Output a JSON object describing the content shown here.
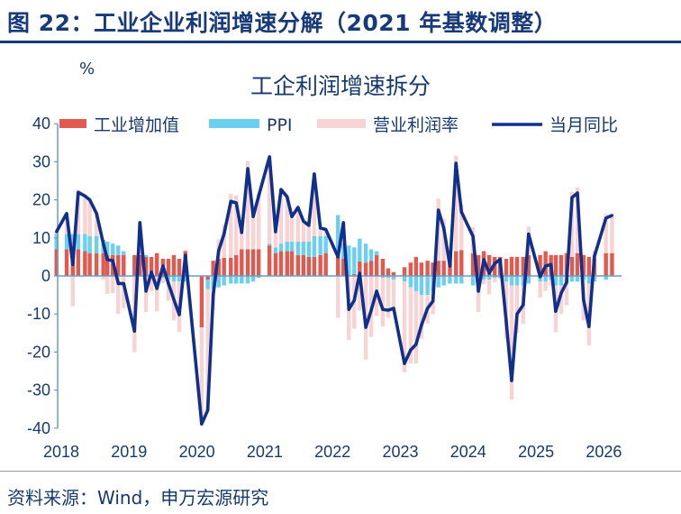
{
  "figure_title": "图 22：工业企业利润增速分解（2021 年基数调整）",
  "source": "资料来源：Wind，申万宏源研究",
  "colors": {
    "iva": "#e05a50",
    "ppi": "#6dcff0",
    "margin": "#f8d3d3",
    "total": "#10308c",
    "axis": "#6a9cc8",
    "text": "#173a6e"
  },
  "chart_data": {
    "type": "bar+line",
    "title": "工企利润增速拆分",
    "ylabel": "%",
    "ylim": [
      -40,
      40
    ],
    "yticks": [
      40,
      30,
      20,
      10,
      0,
      -10,
      -20,
      -30,
      -40
    ],
    "xlim": [
      2017.9,
      2026.2
    ],
    "xticks": [
      "2018",
      "2019",
      "2020",
      "2021",
      "2022",
      "2023",
      "2024",
      "2025",
      "2026"
    ],
    "legend_position": "top",
    "legend": [
      "工业增加值",
      "PPI",
      "营业利润率",
      "当月同比"
    ],
    "x": [
      2017.93,
      2018.08,
      2018.17,
      2018.25,
      2018.35,
      2018.42,
      2018.52,
      2018.62,
      2018.68,
      2018.76,
      2018.84,
      2018.92,
      2019.08,
      2019.16,
      2019.25,
      2019.33,
      2019.41,
      2019.5,
      2019.58,
      2019.66,
      2019.74,
      2019.83,
      2020.07,
      2020.16,
      2020.24,
      2020.32,
      2020.4,
      2020.5,
      2020.58,
      2020.66,
      2020.75,
      2020.83,
      2020.91,
      2021.07,
      2021.16,
      2021.24,
      2021.33,
      2021.4,
      2021.49,
      2021.57,
      2021.65,
      2021.73,
      2021.82,
      2021.9,
      2022.08,
      2022.16,
      2022.24,
      2022.32,
      2022.4,
      2022.49,
      2022.57,
      2022.65,
      2022.74,
      2022.82,
      2022.9,
      2023.06,
      2023.15,
      2023.23,
      2023.31,
      2023.4,
      2023.48,
      2023.56,
      2023.64,
      2023.73,
      2023.82,
      2023.9,
      2024.07,
      2024.15,
      2024.23,
      2024.31,
      2024.39,
      2024.47,
      2024.56,
      2024.64,
      2024.72,
      2024.81,
      2024.89,
      2025.06,
      2025.14,
      2025.22,
      2025.29,
      2025.37,
      2025.45,
      2025.53,
      2025.61,
      2025.7,
      2025.78,
      2025.86,
      2026.03,
      2026.12
    ],
    "series": [
      {
        "name": "工业增加值",
        "kind": "bar",
        "values": [
          7,
          7,
          7,
          7,
          6.5,
          6,
          6,
          6,
          5.5,
          5.5,
          5.5,
          5.5,
          5.5,
          5.5,
          5,
          5,
          6,
          4.5,
          4.5,
          5.5,
          4.5,
          6.5,
          -13.5,
          -1,
          4,
          4.5,
          4.8,
          4.8,
          5.5,
          7,
          7,
          7,
          7,
          8,
          6,
          6.5,
          6.5,
          6.5,
          5.5,
          5.5,
          5,
          5,
          5.5,
          6,
          5,
          4.5,
          0,
          0.5,
          3.8,
          3.5,
          4,
          5.5,
          4.5,
          2,
          1,
          2.3,
          3.5,
          5,
          3.5,
          4,
          3.5,
          4,
          4,
          4.5,
          6.5,
          6.8,
          6,
          5.5,
          6.5,
          5.5,
          5,
          5,
          4.5,
          5,
          5,
          5,
          5.5,
          5.5,
          6.5,
          5.5,
          5.5,
          5.5,
          6,
          5,
          6,
          5.5,
          5,
          4.5,
          6,
          6
        ]
      },
      {
        "name": "PPI",
        "kind": "bar",
        "values": [
          4,
          4,
          4,
          4,
          4.5,
          4.5,
          4.5,
          3.5,
          3.5,
          3,
          2.5,
          1,
          0,
          0,
          0.5,
          0,
          0,
          -0.5,
          -1,
          -1.5,
          -1.5,
          -1.5,
          0,
          -2.5,
          -3.5,
          -3,
          -2.5,
          -2,
          -2,
          -2,
          -2,
          -1.5,
          -0.5,
          0.5,
          1.5,
          2,
          2.5,
          2.5,
          3.5,
          3.5,
          4,
          5.5,
          5,
          4.5,
          11,
          4,
          8,
          7,
          6,
          5,
          3,
          1,
          -0.5,
          -0.5,
          -1,
          -1.5,
          -3,
          -4,
          -5,
          -5,
          -4,
          -3,
          -2.5,
          -2,
          -2,
          -2,
          -2.5,
          -1,
          -1,
          -1,
          -0.5,
          -0.5,
          -1.5,
          -2.5,
          -2.5,
          -2.5,
          -2,
          -1.5,
          -1.5,
          -1,
          -2.5,
          -2.5,
          -2,
          -1.5,
          -1.5,
          -1,
          -2,
          -1.5,
          -1,
          0
        ]
      },
      {
        "name": "营业利润率",
        "kind": "bar",
        "values": [
          0.6,
          5.4,
          -8,
          11,
          10,
          9.5,
          5.9,
          -1,
          -4.7,
          -4.5,
          -10,
          -8.5,
          -20,
          8.5,
          -9.5,
          -4,
          -9.3,
          -1.4,
          -5.5,
          -10.2,
          -13.2,
          0.4,
          -25.4,
          -31.8,
          -5.5,
          5.1,
          8.7,
          16.8,
          15.7,
          6.4,
          23.2,
          10.1,
          14.5,
          22.8,
          4.1,
          14.2,
          11.8,
          6.6,
          9,
          5.4,
          4.3,
          16.3,
          2.1,
          1.7,
          -11,
          5.5,
          -16.8,
          -13.9,
          -9.1,
          -22,
          -16,
          -10.5,
          -12.8,
          -10.5,
          -8.5,
          -23.8,
          -20,
          -19,
          -11.5,
          -7.5,
          -6.1,
          16.3,
          11,
          0.1,
          25.1,
          12,
          6.9,
          -8.5,
          -1.2,
          -3.8,
          -1.2,
          -0.2,
          -15,
          -30,
          -12.5,
          -10.1,
          7.5,
          -4.2,
          -2.4,
          -1.5,
          -12.3,
          -7.5,
          -5.7,
          17.1,
          17.3,
          -10.7,
          -16.3,
          2.2,
          10.2,
          9.9
        ]
      },
      {
        "name": "当月同比",
        "kind": "line",
        "values": [
          11.6,
          16.4,
          3,
          22,
          21,
          20,
          16.4,
          8.5,
          4.3,
          4,
          -2,
          -2,
          -14.5,
          14,
          -4,
          1,
          -3.3,
          2.6,
          -2,
          -6.2,
          -10.2,
          5.4,
          -38.9,
          -35.3,
          -5,
          6.6,
          11,
          19.6,
          19.2,
          11.4,
          28.2,
          15.6,
          21,
          31.3,
          11.6,
          22.7,
          20.8,
          15.6,
          18,
          14.4,
          13.3,
          26.8,
          12.6,
          12.2,
          5,
          14,
          -8.8,
          -6.4,
          0.7,
          -13.5,
          -9,
          -4,
          -8.8,
          -9,
          -8.5,
          -23,
          -19.5,
          -18,
          -13,
          -8.5,
          -6.6,
          17.3,
          12.5,
          2.6,
          29.6,
          16.8,
          10.4,
          -4,
          4.3,
          0.7,
          3.3,
          4.3,
          -12,
          -27.5,
          -10,
          -7.6,
          11,
          -0.2,
          2.6,
          3,
          -9.3,
          -4.5,
          -1.7,
          20.6,
          21.8,
          -6.2,
          -13.3,
          5.2,
          15.2,
          15.9
        ]
      }
    ]
  }
}
